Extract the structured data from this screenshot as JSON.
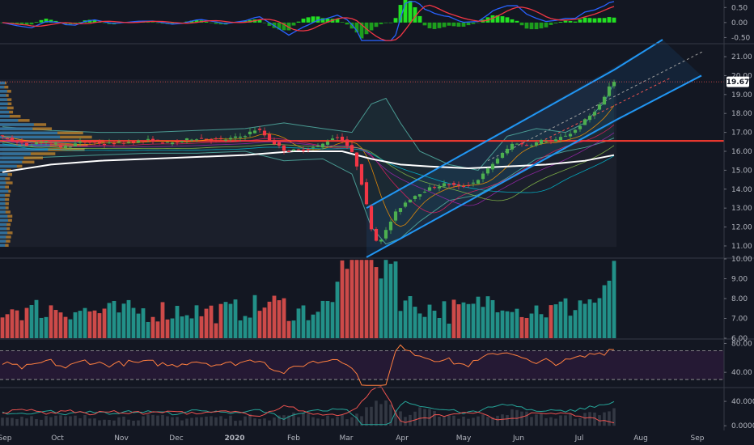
{
  "colors": {
    "background": "#131722",
    "up": "#26a69a",
    "down": "#ef5350",
    "candle_up": "#4caf50",
    "candle_down": "#f23645",
    "macd_line": "#2962ff",
    "signal_line": "#f23645",
    "hist_pos": "#22e022",
    "ma200": "#ffffff",
    "resistance": "#ff3b30",
    "channel": "#2196f3",
    "rsi_line": "#ff7f3f",
    "rsi_band": "#2a1a3a",
    "vp_up": "#1f6fae",
    "vp_down": "#c98a2e",
    "last_price_bg": "#ffffff"
  },
  "chart_data": {
    "type": "candlestick",
    "x_axis_labels": [
      "Sep",
      "Oct",
      "Nov",
      "Dec",
      "2020",
      "Feb",
      "Mar",
      "Apr",
      "May",
      "Jun",
      "Jul",
      "Aug",
      "Sep"
    ],
    "last_price_label": "19.67",
    "price_pane": {
      "ticks": [
        "21.00",
        "20.00",
        "19.00",
        "18.00",
        "17.00",
        "16.00",
        "15.00",
        "14.00",
        "13.00",
        "12.00",
        "11.00"
      ],
      "ylim": [
        10.4,
        21.6
      ],
      "resistance_level": 16.55,
      "price_path": [
        [
          0,
          16.8
        ],
        [
          3,
          16.5
        ],
        [
          6,
          16.3
        ],
        [
          9,
          16.6
        ],
        [
          13,
          16.2
        ],
        [
          17,
          16.5
        ],
        [
          22,
          16.4
        ],
        [
          27,
          16.5
        ],
        [
          31,
          16.6
        ],
        [
          35,
          16.4
        ],
        [
          40,
          16.7
        ],
        [
          46,
          16.6
        ],
        [
          50,
          16.8
        ],
        [
          53,
          17.2
        ],
        [
          56,
          16.5
        ],
        [
          59,
          16.0
        ],
        [
          63,
          16.1
        ],
        [
          66,
          16.3
        ],
        [
          69,
          16.8
        ],
        [
          71,
          16.5
        ],
        [
          73,
          15.7
        ],
        [
          74,
          14.8
        ],
        [
          75,
          13.8
        ],
        [
          76,
          12.5
        ],
        [
          77,
          11.4
        ],
        [
          78,
          11.2
        ],
        [
          79,
          11.6
        ],
        [
          80,
          12.0
        ],
        [
          81,
          12.6
        ],
        [
          83,
          13.2
        ],
        [
          85,
          13.6
        ],
        [
          88,
          14.0
        ],
        [
          92,
          14.3
        ],
        [
          95,
          14.1
        ],
        [
          98,
          14.4
        ],
        [
          100,
          14.9
        ],
        [
          102,
          15.5
        ],
        [
          104,
          16.0
        ],
        [
          106,
          16.5
        ],
        [
          108,
          16.3
        ],
        [
          110,
          16.4
        ],
        [
          112,
          16.6
        ],
        [
          114,
          16.5
        ],
        [
          116,
          16.8
        ],
        [
          118,
          17.0
        ],
        [
          120,
          17.5
        ],
        [
          122,
          18.0
        ],
        [
          124,
          18.6
        ],
        [
          126,
          19.67
        ]
      ],
      "ma200_path": [
        [
          0,
          14.9
        ],
        [
          10,
          15.3
        ],
        [
          20,
          15.5
        ],
        [
          30,
          15.6
        ],
        [
          40,
          15.7
        ],
        [
          50,
          15.8
        ],
        [
          60,
          16.0
        ],
        [
          70,
          16.0
        ],
        [
          76,
          15.6
        ],
        [
          82,
          15.3
        ],
        [
          88,
          15.2
        ],
        [
          96,
          15.1
        ],
        [
          104,
          15.2
        ],
        [
          112,
          15.3
        ],
        [
          120,
          15.5
        ],
        [
          126,
          15.8
        ]
      ],
      "bb_upper": [
        [
          0,
          17.3
        ],
        [
          10,
          17.1
        ],
        [
          20,
          17.0
        ],
        [
          30,
          17.0
        ],
        [
          40,
          17.1
        ],
        [
          50,
          17.2
        ],
        [
          58,
          17.5
        ],
        [
          66,
          17.2
        ],
        [
          72,
          17.0
        ],
        [
          76,
          18.5
        ],
        [
          79,
          18.8
        ],
        [
          82,
          17.5
        ],
        [
          86,
          16.0
        ],
        [
          92,
          15.3
        ],
        [
          98,
          15.0
        ],
        [
          104,
          16.8
        ],
        [
          110,
          17.2
        ],
        [
          116,
          17.0
        ],
        [
          120,
          17.5
        ],
        [
          124,
          18.6
        ],
        [
          126,
          19.6
        ]
      ],
      "bb_lower": [
        [
          0,
          15.6
        ],
        [
          10,
          15.7
        ],
        [
          20,
          15.8
        ],
        [
          30,
          15.9
        ],
        [
          40,
          15.9
        ],
        [
          50,
          16.0
        ],
        [
          58,
          15.5
        ],
        [
          66,
          15.6
        ],
        [
          72,
          14.8
        ],
        [
          76,
          12.0
        ],
        [
          79,
          11.1
        ],
        [
          82,
          11.4
        ],
        [
          86,
          12.3
        ],
        [
          92,
          13.4
        ],
        [
          98,
          13.7
        ],
        [
          104,
          14.6
        ],
        [
          110,
          15.6
        ],
        [
          116,
          16.0
        ],
        [
          120,
          16.2
        ],
        [
          124,
          16.5
        ],
        [
          126,
          16.7
        ]
      ],
      "channel_upper": [
        [
          75,
          13.0
        ],
        [
          126,
          20.3
        ],
        [
          136,
          21.9
        ]
      ],
      "channel_lower": [
        [
          75,
          10.4
        ],
        [
          126,
          17.6
        ],
        [
          144,
          20.0
        ]
      ]
    },
    "macd_pane": {
      "ticks": [
        "0.50",
        "0.00",
        "-0.50"
      ],
      "ylim": [
        -0.65,
        0.75
      ]
    },
    "volume_pane": {
      "ticks": [
        "10.00",
        "9.00",
        "8.00",
        "7.00",
        "6.00"
      ],
      "ylim": [
        6.0,
        10.0
      ]
    },
    "rsi_pane": {
      "ticks": [
        "80.00",
        "40.00"
      ],
      "ylim": [
        20,
        85
      ],
      "band": [
        30,
        70
      ]
    },
    "adx_pane": {
      "ticks": [
        "40.0000",
        "0.0000"
      ],
      "ylim": [
        -5,
        60
      ]
    }
  }
}
